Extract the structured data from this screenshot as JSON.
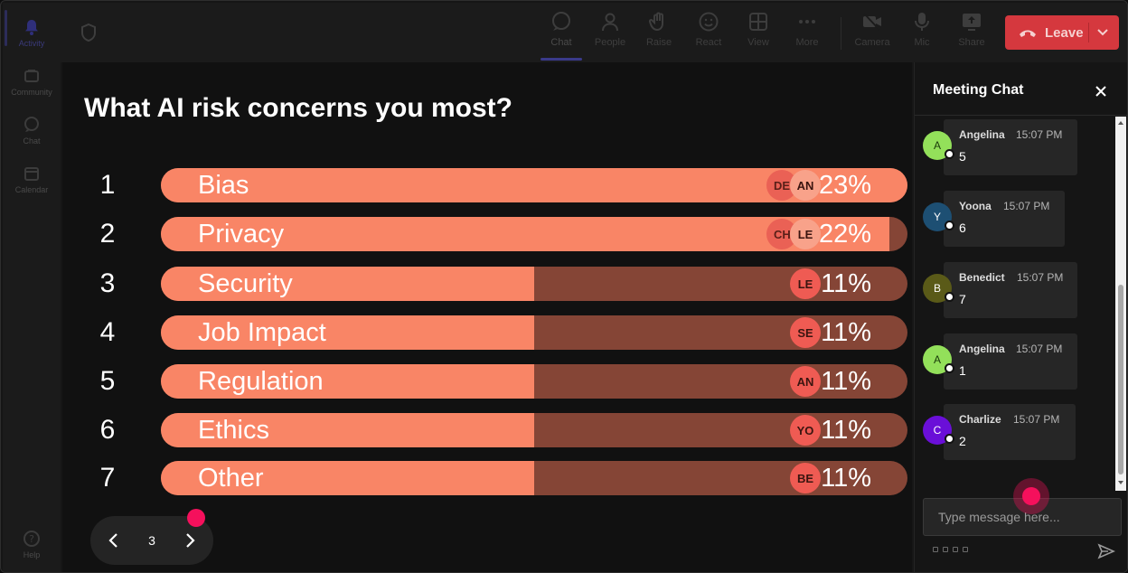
{
  "rail": {
    "items": [
      {
        "label": "Activity",
        "icon": "bell-icon"
      },
      {
        "label": "Community",
        "icon": "community-icon"
      },
      {
        "label": "Chat",
        "icon": "chat-icon"
      },
      {
        "label": "Calendar",
        "icon": "calendar-icon"
      },
      {
        "label": "Help",
        "icon": "help-icon"
      }
    ]
  },
  "toolbar": {
    "buttons": [
      {
        "label": "Chat",
        "icon": "chat-icon"
      },
      {
        "label": "People",
        "icon": "people-icon"
      },
      {
        "label": "Raise",
        "icon": "hand-icon"
      },
      {
        "label": "React",
        "icon": "smiley-icon"
      },
      {
        "label": "View",
        "icon": "grid-icon"
      },
      {
        "label": "More",
        "icon": "more-icon"
      },
      {
        "label": "Camera",
        "icon": "camera-off-icon"
      },
      {
        "label": "Mic",
        "icon": "mic-icon"
      },
      {
        "label": "Share",
        "icon": "share-icon"
      }
    ],
    "leave_label": "Leave"
  },
  "poll": {
    "title": "What AI risk concerns you most?",
    "options": [
      {
        "rank": "1",
        "label": "Bias",
        "percent": "23%",
        "fill": 1.0,
        "chips": [
          "DE",
          "AN"
        ]
      },
      {
        "rank": "2",
        "label": "Privacy",
        "percent": "22%",
        "fill": 0.976,
        "chips": [
          "CH",
          "LE"
        ]
      },
      {
        "rank": "3",
        "label": "Security",
        "percent": "11%",
        "fill": 0.5,
        "chips": [
          "LE"
        ]
      },
      {
        "rank": "4",
        "label": "Job Impact",
        "percent": "11%",
        "fill": 0.5,
        "chips": [
          "SE"
        ]
      },
      {
        "rank": "5",
        "label": "Regulation",
        "percent": "11%",
        "fill": 0.5,
        "chips": [
          "AN"
        ]
      },
      {
        "rank": "6",
        "label": "Ethics",
        "percent": "11%",
        "fill": 0.5,
        "chips": [
          "YO"
        ]
      },
      {
        "rank": "7",
        "label": "Other",
        "percent": "11%",
        "fill": 0.5,
        "chips": [
          "BE"
        ]
      }
    ],
    "page": "3"
  },
  "chat": {
    "title": "Meeting Chat",
    "messages": [
      {
        "initial": "A",
        "name": "Angelina",
        "time": "15:07 PM",
        "text": "5",
        "color": "#93e05a",
        "text_color": "#1a3a0a"
      },
      {
        "initial": "Y",
        "name": "Yoona",
        "time": "15:07 PM",
        "text": "6",
        "color": "#1d4f73",
        "text_color": "#ffffff"
      },
      {
        "initial": "B",
        "name": "Benedict",
        "time": "15:07 PM",
        "text": "7",
        "color": "#5a5a18",
        "text_color": "#ffffff"
      },
      {
        "initial": "A",
        "name": "Angelina",
        "time": "15:07 PM",
        "text": "1",
        "color": "#93e05a",
        "text_color": "#1a3a0a"
      },
      {
        "initial": "C",
        "name": "Charlize",
        "time": "15:07 PM",
        "text": "2",
        "color": "#6a0fd8",
        "text_color": "#ffffff"
      }
    ],
    "input_placeholder": "Type message here..."
  },
  "colors": {
    "bar_fill": "#f98566",
    "bar_track": "#854536",
    "leave": "#d5383e",
    "cursor_dot": "#f5105c"
  }
}
